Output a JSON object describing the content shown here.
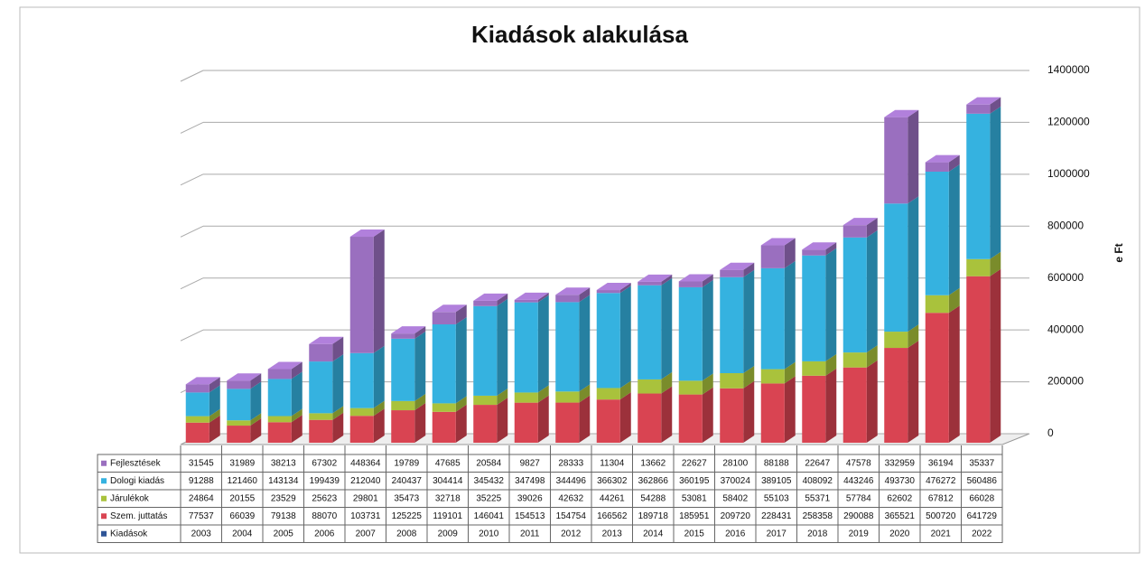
{
  "chart_data": {
    "type": "bar",
    "stacked": true,
    "title": "Kiadások alakulása",
    "y_label": "e Ft",
    "x_label": "Kiadások",
    "x_label_color": "#2f5597",
    "categories": [
      "2003",
      "2004",
      "2005",
      "2006",
      "2007",
      "2008",
      "2009",
      "2010",
      "2011",
      "2012",
      "2013",
      "2014",
      "2015",
      "2016",
      "2017",
      "2018",
      "2019",
      "2020",
      "2021",
      "2022"
    ],
    "series": [
      {
        "name": "Szem. juttatás",
        "color": "#d94452",
        "values": [
          77537,
          66039,
          79138,
          88070,
          103731,
          125225,
          119101,
          146041,
          154513,
          154754,
          166562,
          189718,
          185951,
          209720,
          228431,
          258358,
          290088,
          365521,
          500720,
          641729
        ]
      },
      {
        "name": "Járulékok",
        "color": "#a9c23c",
        "values": [
          24864,
          20155,
          23529,
          25623,
          29801,
          35473,
          32718,
          35225,
          39026,
          42632,
          44261,
          54288,
          53081,
          58402,
          55103,
          55371,
          57784,
          62602,
          67812,
          66028
        ]
      },
      {
        "name": "Dologi kiadás",
        "color": "#35b2e0",
        "values": [
          91288,
          121460,
          143134,
          199439,
          212040,
          240437,
          304414,
          345432,
          347498,
          344496,
          366302,
          362866,
          360195,
          370024,
          389105,
          408092,
          443246,
          493730,
          476272,
          560486
        ]
      },
      {
        "name": "Fejlesztések",
        "color": "#9a6fbf",
        "values": [
          31545,
          31989,
          38213,
          67302,
          448364,
          19789,
          47685,
          20584,
          9827,
          28333,
          11304,
          13662,
          22627,
          28100,
          88188,
          22647,
          47578,
          332959,
          36194,
          35337
        ]
      }
    ],
    "ylim": [
      0,
      1400000
    ],
    "yticks": [
      0,
      200000,
      400000,
      600000,
      800000,
      1000000,
      1200000,
      1400000
    ],
    "grid": true
  }
}
